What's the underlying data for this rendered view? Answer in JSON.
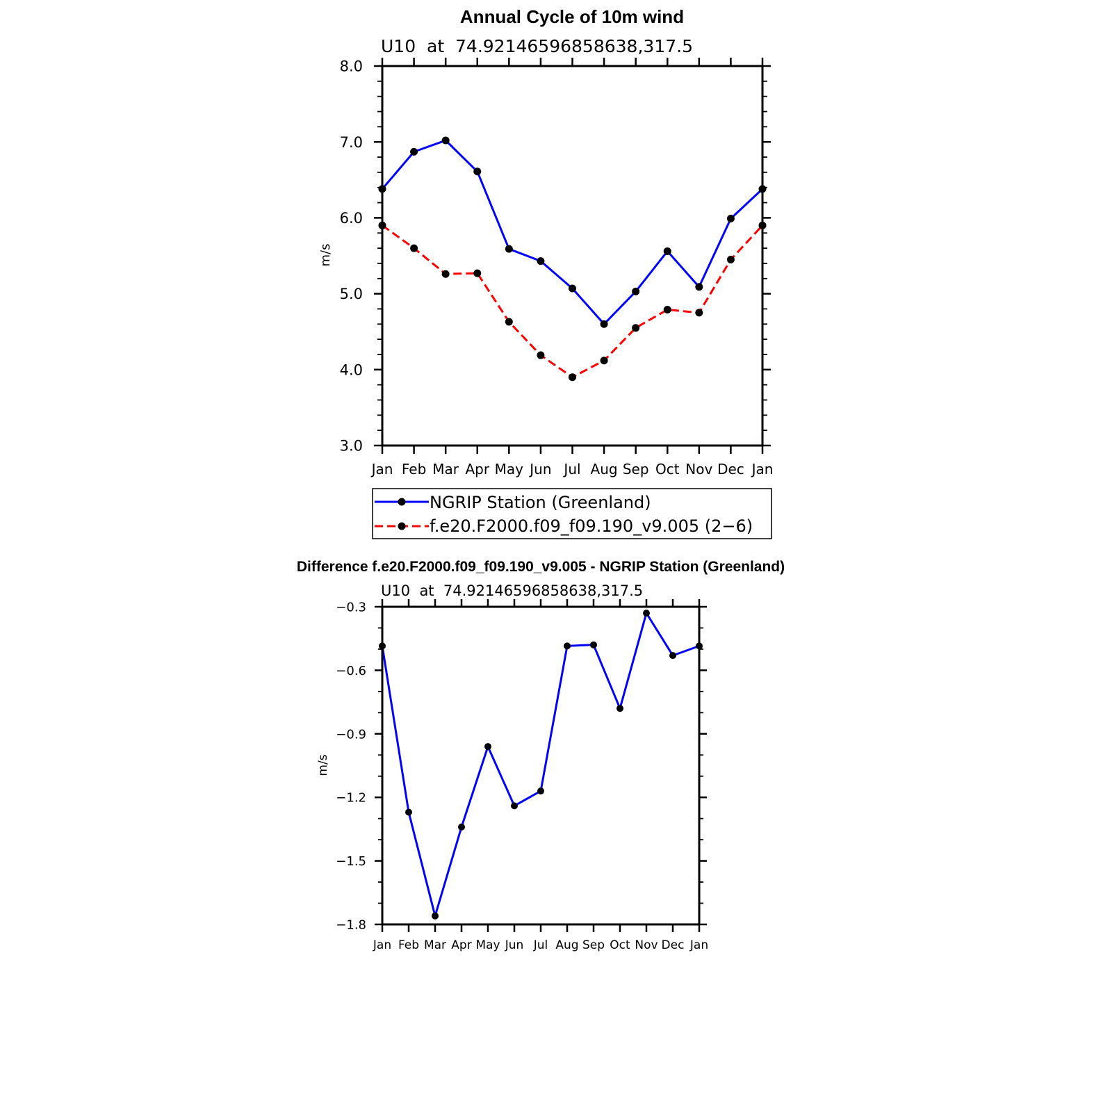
{
  "chart_data": [
    {
      "type": "line",
      "title": "Annual Cycle of 10m wind",
      "subtitle": "U10  at  74.92146596858638,317.5",
      "xlabel": "",
      "ylabel": "m/s",
      "categories": [
        "Jan",
        "Feb",
        "Mar",
        "Apr",
        "May",
        "Jun",
        "Jul",
        "Aug",
        "Sep",
        "Oct",
        "Nov",
        "Dec",
        "Jan"
      ],
      "ylim": [
        3.0,
        8.0
      ],
      "yticks": [
        "3.0",
        "4.0",
        "5.0",
        "6.0",
        "7.0",
        "8.0"
      ],
      "series": [
        {
          "name": "NGRIP Station (Greenland)",
          "color": "#0000ff",
          "dash": "solid",
          "values": [
            6.38,
            6.87,
            7.02,
            6.61,
            5.59,
            5.43,
            5.07,
            4.6,
            5.03,
            5.56,
            5.09,
            5.99,
            6.38
          ]
        },
        {
          "name": "f.e20.F2000.f09_f09.190_v9.005 (2−6)",
          "color": "#ff0000",
          "dash": "dashed",
          "values": [
            5.9,
            5.6,
            5.26,
            5.27,
            4.63,
            4.19,
            3.9,
            4.12,
            4.55,
            4.79,
            4.75,
            5.45,
            5.9
          ]
        }
      ],
      "legend": "below"
    },
    {
      "type": "line",
      "title": "Difference f.e20.F2000.f09_f09.190_v9.005 - NGRIP Station (Greenland)",
      "subtitle": "U10  at  74.92146596858638,317.5",
      "xlabel": "",
      "ylabel": "m/s",
      "categories": [
        "Jan",
        "Feb",
        "Mar",
        "Apr",
        "May",
        "Jun",
        "Jul",
        "Aug",
        "Sep",
        "Oct",
        "Nov",
        "Dec",
        "Jan"
      ],
      "ylim": [
        -1.8,
        -0.3
      ],
      "yticks": [
        "−1.8",
        "−1.5",
        "−1.2",
        "−0.9",
        "−0.6",
        "−0.3"
      ],
      "series": [
        {
          "name": "Difference",
          "color": "#0000ff",
          "dash": "solid",
          "values": [
            -0.485,
            -1.27,
            -1.76,
            -1.34,
            -0.96,
            -1.24,
            -1.17,
            -0.485,
            -0.48,
            -0.78,
            -0.33,
            -0.53,
            -0.485
          ]
        }
      ]
    }
  ]
}
